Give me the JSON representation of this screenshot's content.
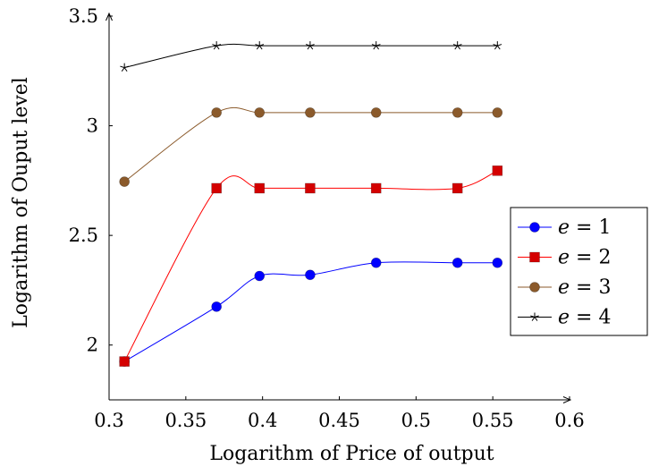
{
  "chart_data": {
    "type": "line",
    "title": "",
    "xlabel": "Logarithm of Price of output",
    "ylabel": "Logarithm of Ouput level",
    "xlim": [
      0.3,
      0.6
    ],
    "ylim": [
      1.75,
      3.5
    ],
    "xticks": [
      "0.3",
      "0.35",
      "0.4",
      "0.45",
      "0.5",
      "0.55",
      "0.6"
    ],
    "xtick_values": [
      0.3,
      0.35,
      0.4,
      0.45,
      0.5,
      0.55,
      0.6
    ],
    "yticks": [
      "2",
      "2.5",
      "3",
      "3.5"
    ],
    "ytick_values": [
      2,
      2.5,
      3,
      3.5
    ],
    "grid": false,
    "legend_position": "right",
    "x": [
      0.31,
      0.37,
      0.398,
      0.431,
      0.474,
      0.527,
      0.553
    ],
    "series": [
      {
        "name": "e = 1",
        "var": "e",
        "eq": " = 1",
        "color": "#0000ff",
        "marker": "circle",
        "values": [
          1.925,
          2.175,
          2.315,
          2.32,
          2.375,
          2.375,
          2.375
        ]
      },
      {
        "name": "e = 2",
        "var": "e",
        "eq": " = 2",
        "color": "#ff0000",
        "marker": "square",
        "values": [
          1.925,
          2.715,
          2.715,
          2.715,
          2.715,
          2.715,
          2.795
        ]
      },
      {
        "name": "e = 3",
        "var": "e",
        "eq": " = 3",
        "color": "#8b5a2b",
        "marker": "circle",
        "values": [
          2.745,
          3.06,
          3.06,
          3.06,
          3.06,
          3.06,
          3.06
        ]
      },
      {
        "name": "e = 4",
        "var": "e",
        "eq": " = 4",
        "color": "#000000",
        "marker": "star",
        "values": [
          3.265,
          3.365,
          3.365,
          3.365,
          3.365,
          3.365,
          3.365
        ]
      }
    ]
  }
}
